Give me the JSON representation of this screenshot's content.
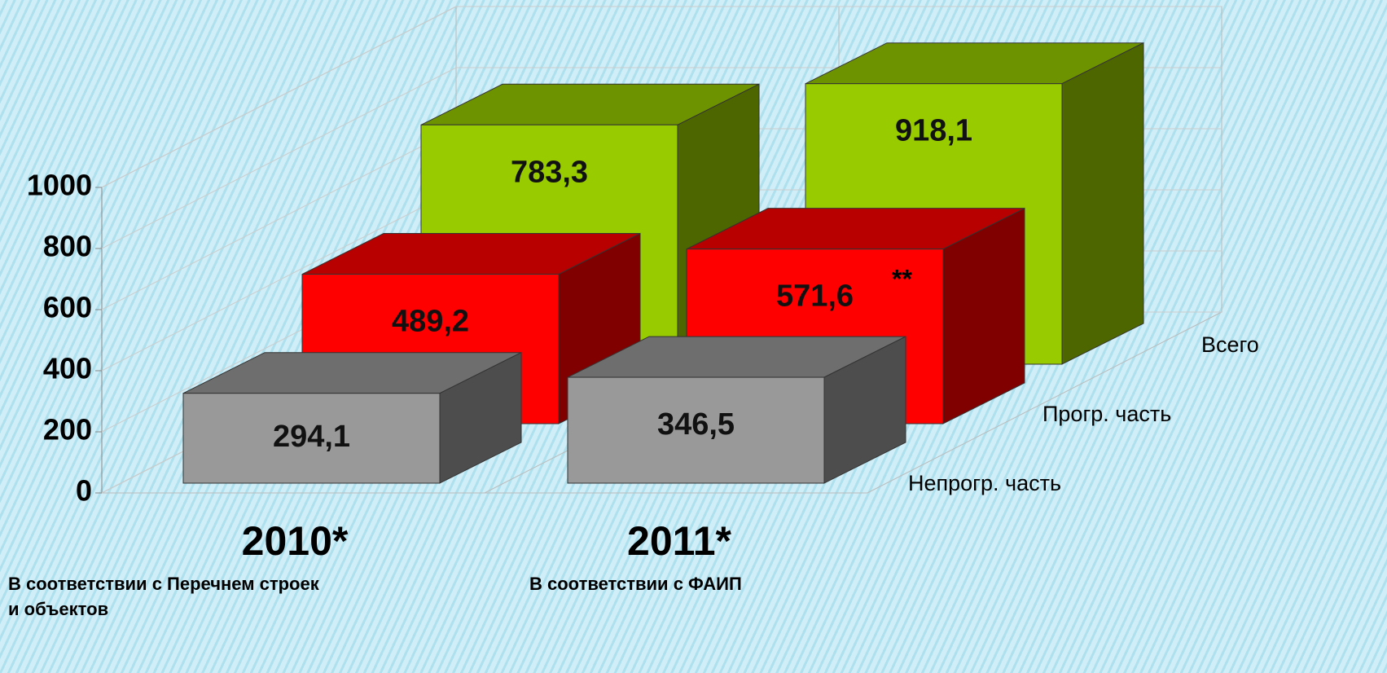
{
  "chart_data": {
    "type": "bar3d",
    "categories": [
      "2010*",
      "2011*"
    ],
    "series": [
      {
        "name": "Непрогр. часть",
        "color": "#999999",
        "values": [
          294.1,
          346.5
        ],
        "value_labels": [
          "294,1",
          "346,5"
        ]
      },
      {
        "name": "Прогр. часть",
        "color": "#ff0000",
        "values": [
          489.2,
          571.6
        ],
        "value_labels": [
          "489,2",
          "571,6"
        ]
      },
      {
        "name": "Всего",
        "color": "#99cc00",
        "values": [
          783.3,
          918.1
        ],
        "value_labels": [
          "783,3",
          "918,1"
        ]
      }
    ],
    "ylim": [
      0,
      1000
    ],
    "yticks": [
      0,
      200,
      400,
      600,
      800,
      1000
    ],
    "grid": true,
    "annotations": [
      "**"
    ],
    "category_notes": [
      [
        "В соответствии с Перечнем строек",
        "и объектов"
      ],
      [
        "В соответствии с ФАИП"
      ]
    ]
  }
}
